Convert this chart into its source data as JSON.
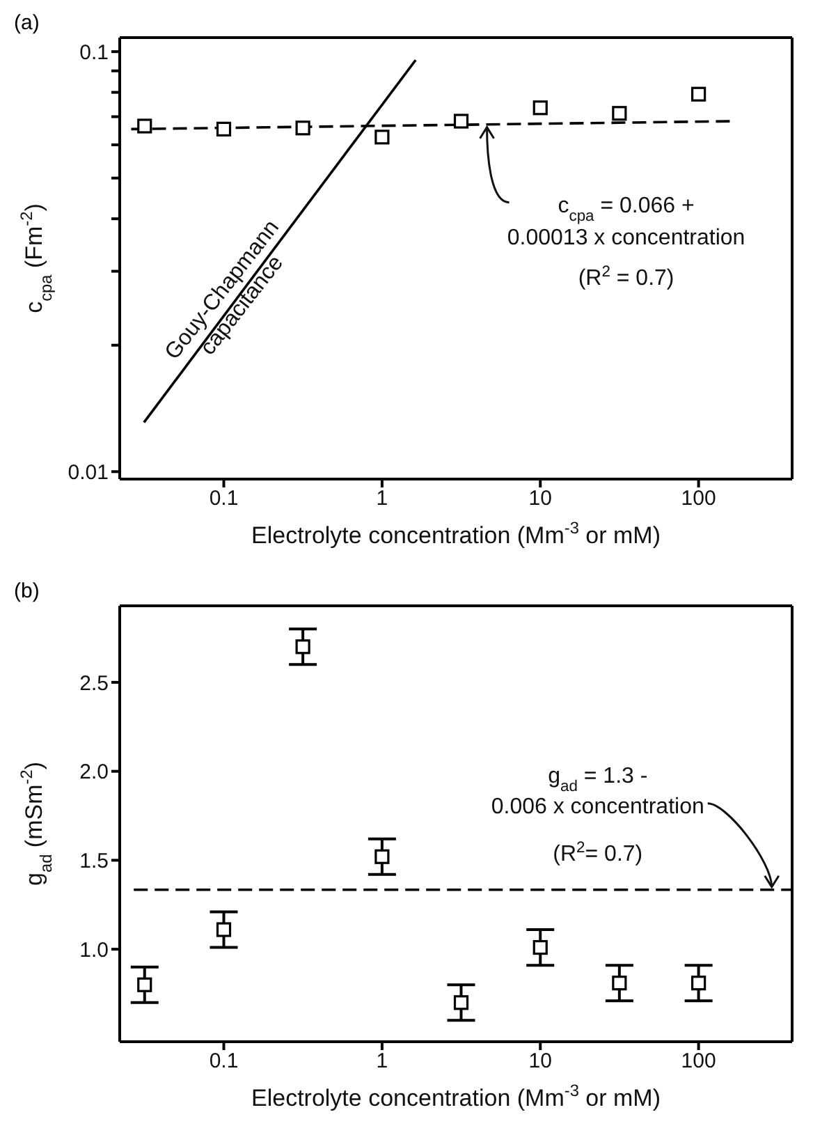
{
  "chart_data": [
    {
      "type": "scatter",
      "title": "(a)",
      "xlabel": "Electrolyte concentration  (Mm$^{-3}$ or mM)",
      "ylabel": "c$_{cpa}$  (Fm$^{-2}$)",
      "log": "xy",
      "marker": "square",
      "xlim": [
        0.022,
        390
      ],
      "ylim": [
        0.0096,
        0.108
      ],
      "xticks": [
        0.1,
        1,
        10,
        100
      ],
      "yticks": [
        0.01,
        {
          "value": 0.02,
          "label": null
        },
        {
          "value": 0.03,
          "label": null
        },
        {
          "value": 0.04,
          "label": null
        },
        {
          "value": 0.05,
          "label": null
        },
        {
          "value": 0.06,
          "label": null
        },
        {
          "value": 0.07,
          "label": null
        },
        {
          "value": 0.08,
          "label": null
        },
        {
          "value": 0.09,
          "label": null
        },
        0.1
      ],
      "series": [
        {
          "type": "scatter",
          "color": "#000000",
          "x": [
            0.0316,
            0.1,
            0.316,
            1,
            3.16,
            10,
            31.6,
            100
          ],
          "values": [
            0.0665,
            0.0654,
            0.0658,
            0.0626,
            0.0683,
            0.0735,
            0.0713,
            0.0792
          ]
        },
        {
          "type": "line",
          "color": "#000000",
          "line_style": "dashed",
          "marker": "none",
          "x": [
            0.026,
            167
          ],
          "values": [
            0.0654,
            0.0683
          ]
        },
        {
          "type": "line",
          "color": "#000000",
          "line_style": "solid",
          "marker": "none",
          "x": [
            0.0313,
            1.63
          ],
          "values": [
            0.0131,
            0.0955
          ]
        }
      ],
      "annotations": [
        {
          "text": "Gouy-Chapmann\ncapacitance",
          "x": 0.125,
          "y": 0.0261
        },
        {
          "text": "c$_{cpa}$ = 0.066 +\n0.00013 x concentration\n(R$^{2}$ = 0.7)",
          "x": 4.6,
          "y": 0.0671
        }
      ]
    },
    {
      "type": "scatter",
      "title": "(b)",
      "xlabel": "Electrolyte concentration  (Mm$^{-3}$ or mM)",
      "ylabel": "g$_{ad}$  (mSm$^{-2}$)",
      "log": "x",
      "marker": "square",
      "xlim": [
        0.022,
        390
      ],
      "ylim": [
        0.48,
        2.93
      ],
      "xticks": [
        0.1,
        1,
        10,
        100
      ],
      "yticks": [
        {
          "value": 1,
          "label": "1.0"
        },
        1.5,
        {
          "value": 2,
          "label": "2.0"
        },
        2.5
      ],
      "series": [
        {
          "type": "scatter",
          "color": "#000000",
          "x": [
            0.0316,
            0.1,
            0.316,
            1,
            3.16,
            10,
            31.6,
            100
          ],
          "values": [
            0.8,
            1.11,
            2.7,
            1.52,
            0.7,
            1.01,
            0.81,
            0.81
          ],
          "errors": [
            0.1,
            0.1,
            0.1,
            0.1,
            0.1,
            0.1,
            0.1,
            0.1
          ]
        },
        {
          "type": "line",
          "color": "#000000",
          "line_style": "dashed",
          "marker": "none",
          "x": [
            0.027,
            390
          ],
          "values": [
            1.334,
            1.334
          ]
        }
      ],
      "annotations": [
        {
          "text": "g$_{ad}$  = 1.3 -\n0.006 x concentration\n(R$^{2}$= 0.7)",
          "x": 290,
          "y": 1.334
        }
      ]
    }
  ]
}
